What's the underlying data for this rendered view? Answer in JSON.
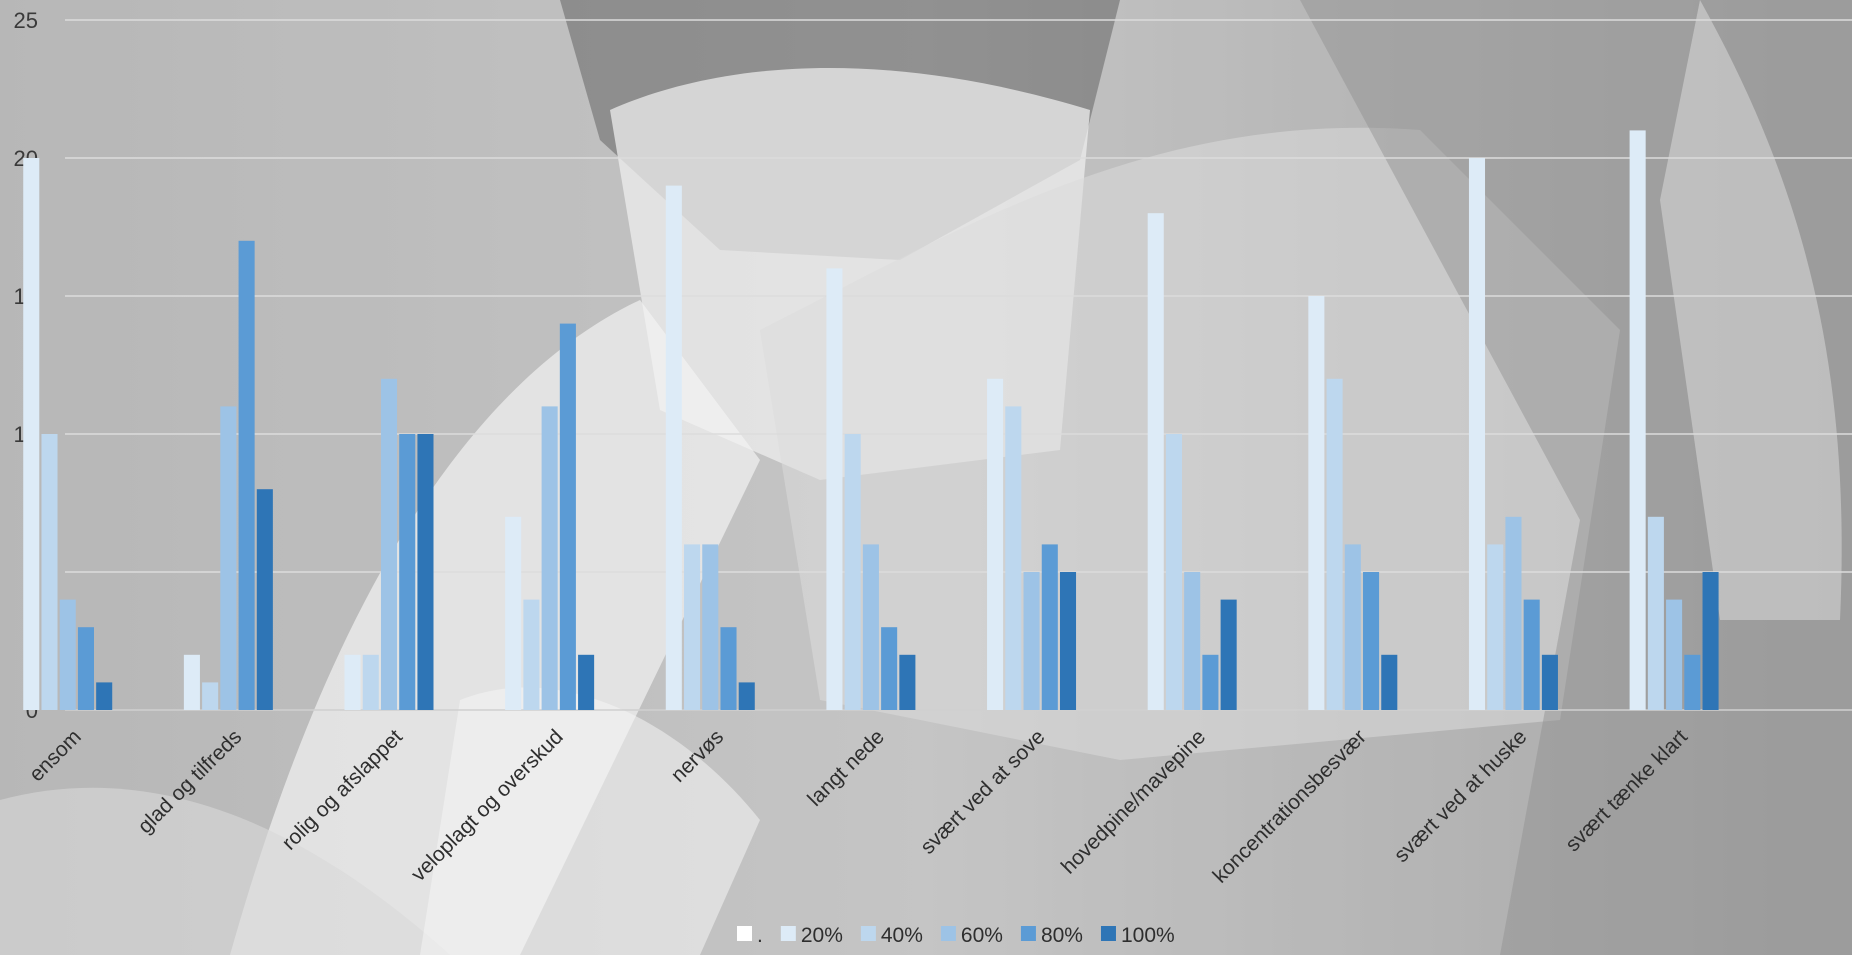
{
  "chart_data": {
    "type": "bar",
    "title": "",
    "xlabel": "",
    "ylabel": "",
    "ylim": [
      0,
      25
    ],
    "yticks": [
      0,
      5,
      10,
      15,
      20,
      25
    ],
    "grid": true,
    "legend_position": "bottom",
    "categories": [
      "ensom",
      "glad og tilfreds",
      "rolig og afslappet",
      "veloplagt og overskud",
      "nervøs",
      "langt nede",
      "svært ved at sove",
      "hovedpine/mavepine",
      "koncentrationsbesvær",
      "svært ved at huske",
      "svært tænke klart"
    ],
    "series": [
      {
        "name": ".",
        "color": "#ffffff",
        "values": [
          0,
          0,
          0,
          0,
          0,
          0,
          0,
          0,
          0,
          0,
          0
        ]
      },
      {
        "name": "20%",
        "color": "#ddebf7",
        "values": [
          20,
          2,
          2,
          7,
          19,
          16,
          12,
          18,
          15,
          20,
          21
        ]
      },
      {
        "name": "40%",
        "color": "#bdd7ee",
        "values": [
          10,
          1,
          2,
          4,
          6,
          10,
          11,
          10,
          12,
          6,
          7
        ]
      },
      {
        "name": "60%",
        "color": "#9dc3e6",
        "values": [
          4,
          11,
          12,
          11,
          6,
          6,
          5,
          5,
          6,
          7,
          4
        ]
      },
      {
        "name": "80%",
        "color": "#5b9bd5",
        "values": [
          3,
          17,
          10,
          14,
          3,
          3,
          6,
          2,
          5,
          4,
          2
        ]
      },
      {
        "name": "100%",
        "color": "#2e75b6",
        "values": [
          1,
          8,
          10,
          2,
          1,
          2,
          5,
          4,
          2,
          2,
          5
        ]
      }
    ]
  }
}
